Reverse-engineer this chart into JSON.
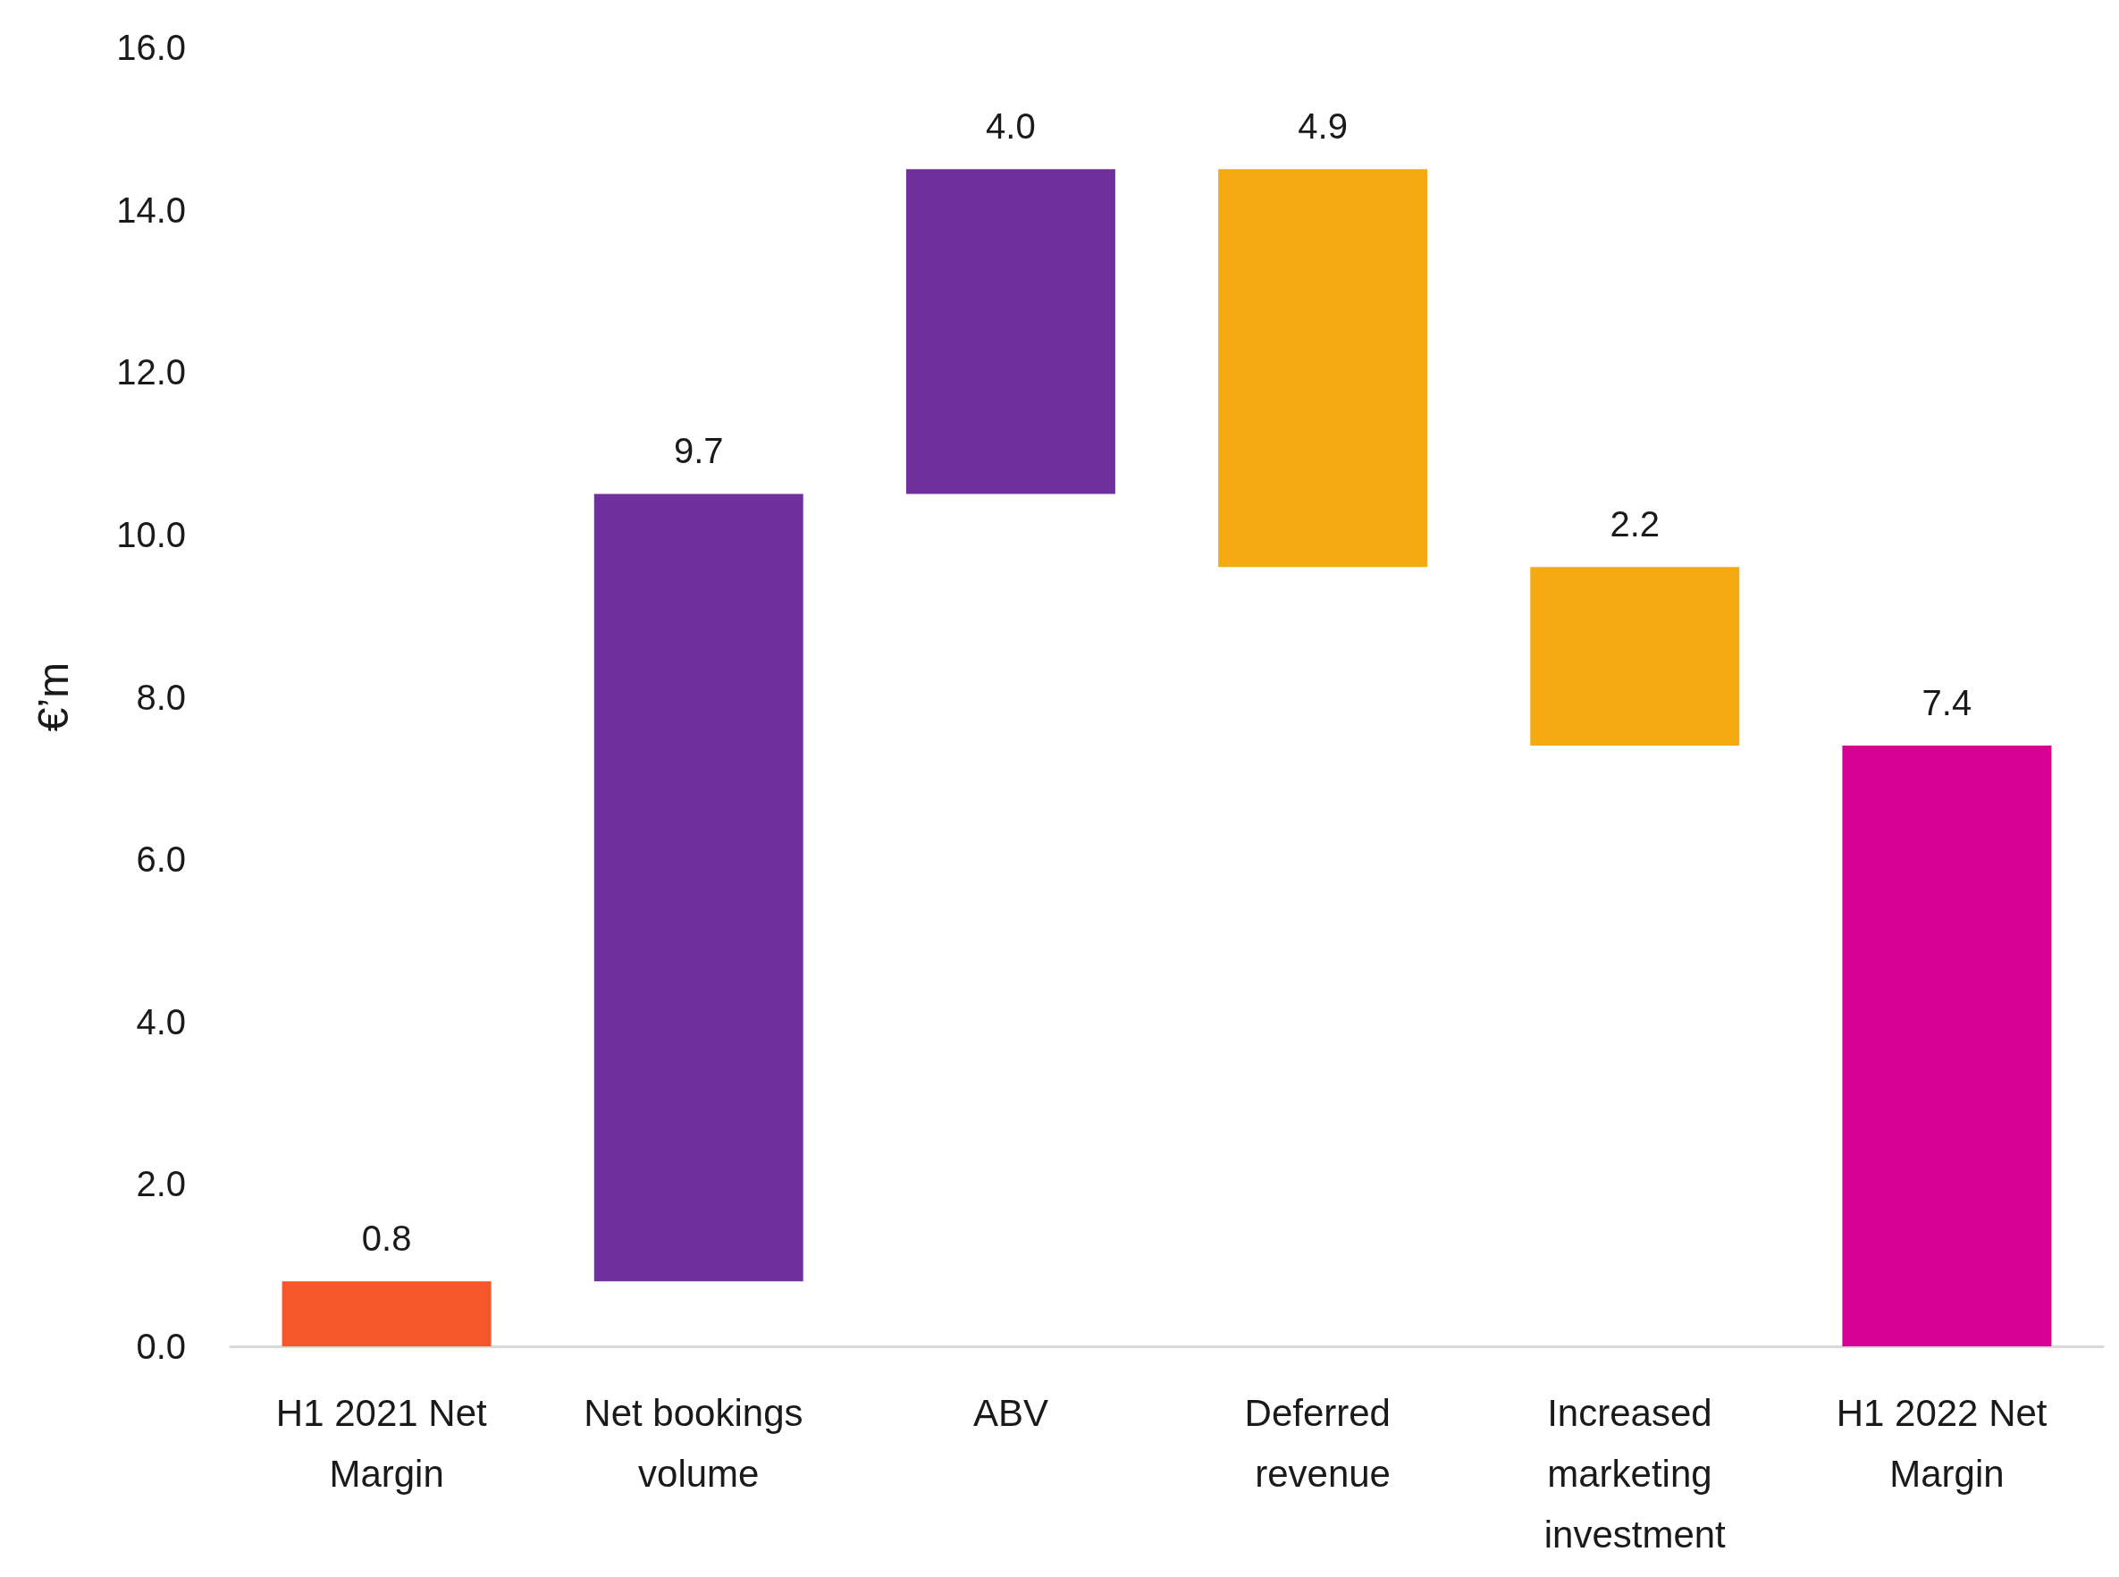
{
  "chart_data": {
    "type": "bar",
    "ylabel": "€’m",
    "categories": [
      "H1 2021 Net Margin",
      "Net bookings volume",
      "ABV",
      "Deferred revenue",
      "Increased marketing investment",
      "H1 2022 Net Margin"
    ],
    "values": [
      0.8,
      9.7,
      4.0,
      -4.9,
      -2.2,
      7.4
    ],
    "base": [
      0,
      0.8,
      10.5,
      14.5,
      9.6,
      0
    ],
    "colors": [
      "#f5562a",
      "#6f2f9c",
      "#6f2f9c",
      "#f5aa12",
      "#f5aa12",
      "#d60093"
    ],
    "value_labels": [
      "0.8",
      "9.7",
      "4.0",
      "4.9",
      "2.2",
      "7.4"
    ],
    "ylim": [
      0,
      16
    ],
    "yticks": [
      {
        "value": 0,
        "label": "0.0"
      },
      {
        "value": 2,
        "label": "2.0"
      },
      {
        "value": 4,
        "label": "4.0"
      },
      {
        "value": 6,
        "label": "6.0"
      },
      {
        "value": 8,
        "label": "8.0"
      },
      {
        "value": 10,
        "label": "10.0"
      },
      {
        "value": 12,
        "label": "12.0"
      },
      {
        "value": 14,
        "label": "14.0"
      },
      {
        "value": 16,
        "label": "16.0"
      }
    ],
    "grid": false
  }
}
